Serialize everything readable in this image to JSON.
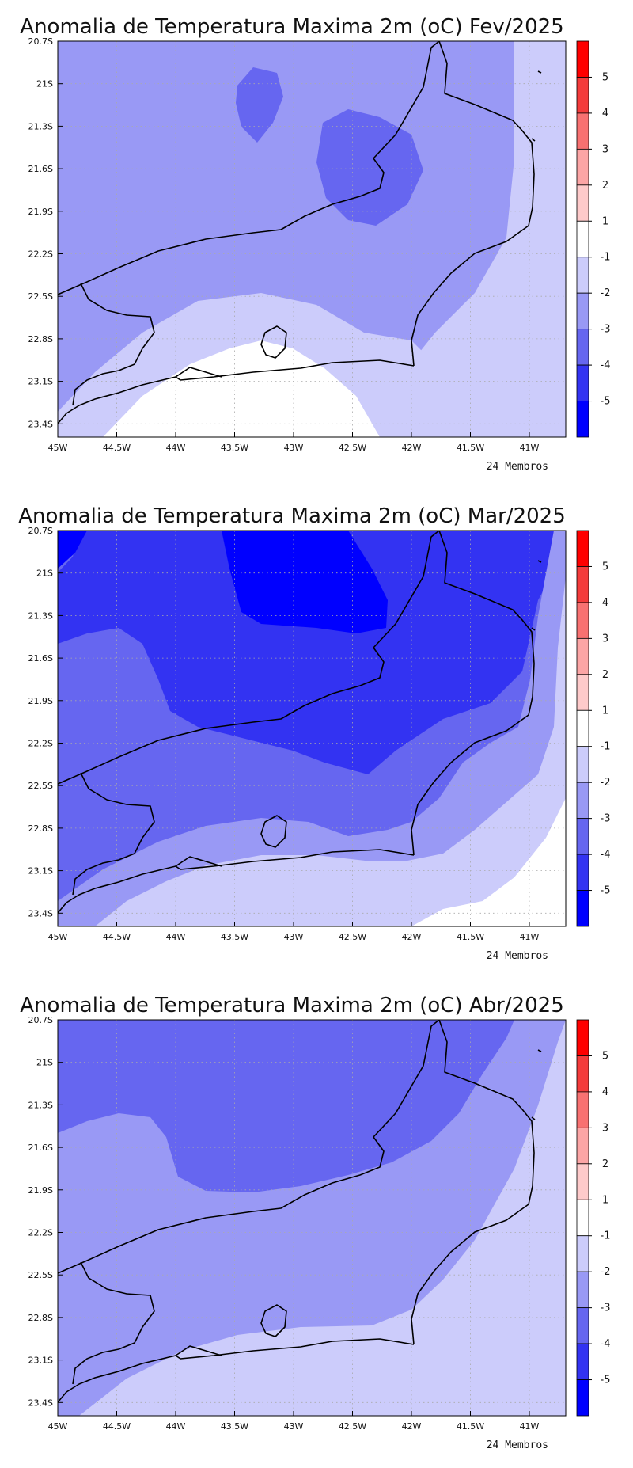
{
  "colors": {
    "level_-5": "#0000ff",
    "level_-4": "#3333f2",
    "level_-3": "#6666f0",
    "level_-2": "#9999f5",
    "level_-1": "#ccccfb",
    "level_0": "#ffffff",
    "level_1": "#fecaca",
    "level_2": "#fca5a5",
    "level_3": "#f87171",
    "level_4": "#f43b3b",
    "level_5": "#ff0000",
    "coast": "#000000",
    "grid": "#aaaaaa"
  },
  "axes": {
    "lon_ticks": [
      "45W",
      "44.5W",
      "44W",
      "43.5W",
      "43W",
      "42.5W",
      "42W",
      "41.5W",
      "41W"
    ],
    "lat_ticks": [
      "20.7S",
      "21S",
      "21.3S",
      "21.6S",
      "21.9S",
      "22.2S",
      "22.5S",
      "22.8S",
      "23.1S",
      "23.4S"
    ]
  },
  "colorbar": {
    "labels": [
      "5",
      "4",
      "3",
      "2",
      "1",
      "-1",
      "-2",
      "-3",
      "-4",
      "-5"
    ]
  },
  "panels": [
    {
      "title": "Anomalia de Temperatura Maxima 2m (oC) Fev/2025",
      "footer": "24 Membros"
    },
    {
      "title": "Anomalia de Temperatura Maxima 2m (oC) Mar/2025",
      "footer": "24 Membros"
    },
    {
      "title": "Anomalia de Temperatura Maxima 2m (oC) Abr/2025",
      "footer": "24 Membros"
    }
  ]
}
